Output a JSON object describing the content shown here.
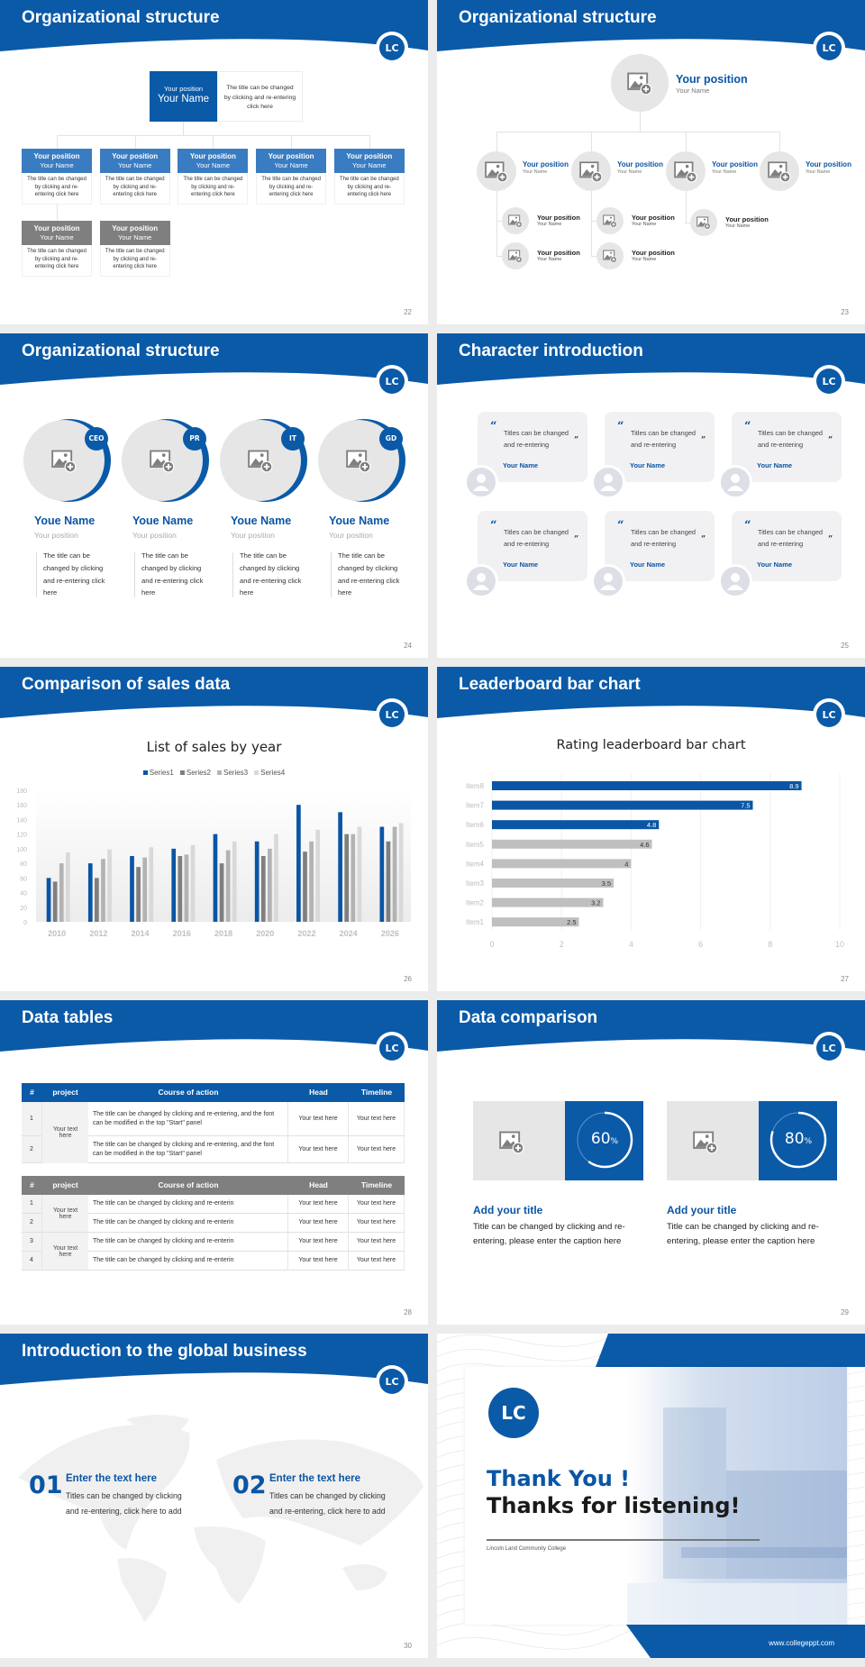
{
  "page": {
    "background": "#ececec"
  },
  "colors": {
    "brand_blue": "#0a5aa8",
    "mid_blue": "#3a7cc1",
    "gray_box": "#7f7f7f",
    "light_gray": "#e6e6e6"
  },
  "logo": {
    "text": "LC"
  },
  "slides": [
    {
      "number": "22",
      "title": "Organizational structure",
      "top": {
        "position": "Your position",
        "name": "Your Name",
        "description": "The title can be changed by clicking and re-entering click here"
      },
      "members": [
        {
          "position": "Your position",
          "name": "Your Name",
          "description": "The title can be changed by clicking and re-entering click here",
          "tone": "blue"
        },
        {
          "position": "Your position",
          "name": "Your Name",
          "description": "The title can be changed by clicking and re-entering click here",
          "tone": "blue"
        },
        {
          "position": "Your position",
          "name": "Your Name",
          "description": "The title can be changed by clicking and re-entering click here",
          "tone": "blue"
        },
        {
          "position": "Your position",
          "name": "Your Name",
          "description": "The title can be changed by clicking and re-entering click here",
          "tone": "blue"
        },
        {
          "position": "Your position",
          "name": "Your Name",
          "description": "The title can be changed by clicking and re-entering click here",
          "tone": "blue"
        },
        {
          "position": "Your position",
          "name": "Your Name",
          "description": "The title can be changed by clicking and re-entering click here",
          "tone": "gray"
        },
        {
          "position": "Your position",
          "name": "Your Name",
          "description": "The title can be changed by clicking and re-entering click here",
          "tone": "gray"
        }
      ]
    },
    {
      "number": "23",
      "title": "Organizational structure",
      "top": {
        "position": "Your position",
        "name": "Your Name"
      },
      "level2": [
        {
          "position": "Your position",
          "name": "Your Name"
        },
        {
          "position": "Your position",
          "name": "Your Name"
        },
        {
          "position": "Your position",
          "name": "Your Name"
        },
        {
          "position": "Your position",
          "name": "Your Name"
        }
      ],
      "level3": [
        {
          "position": "Your position",
          "name": "Your Name"
        },
        {
          "position": "Your position",
          "name": "Your Name"
        },
        {
          "position": "Your position",
          "name": "Your Name"
        },
        {
          "position": "Your position",
          "name": "Your Name"
        },
        {
          "position": "Your position",
          "name": "Your Name"
        }
      ]
    },
    {
      "number": "24",
      "title": "Organizational structure",
      "members": [
        {
          "badge": "CEO",
          "name": "Youe Name",
          "position": "Your position",
          "description": "The title can be changed by clicking and re-entering click here"
        },
        {
          "badge": "PR",
          "name": "Youe Name",
          "position": "Your position",
          "description": "The title can be changed by clicking and re-entering click here"
        },
        {
          "badge": "IT",
          "name": "Youe Name",
          "position": "Your position",
          "description": "The title can be changed by clicking and re-entering click here"
        },
        {
          "badge": "GD",
          "name": "Youe Name",
          "position": "Your position",
          "description": "The title can be changed by clicking and re-entering click here"
        }
      ]
    },
    {
      "number": "25",
      "title": "Character introduction",
      "cards": [
        {
          "quote": "Titles can be changed and re-entering",
          "name": "Your Name"
        },
        {
          "quote": "Titles can be changed and re-entering",
          "name": "Your Name"
        },
        {
          "quote": "Titles can be changed and re-entering",
          "name": "Your Name"
        },
        {
          "quote": "Titles can be changed and re-entering",
          "name": "Your Name"
        },
        {
          "quote": "Titles can be changed and re-entering",
          "name": "Your Name"
        },
        {
          "quote": "Titles can be changed and re-entering",
          "name": "Your Name"
        }
      ]
    },
    {
      "number": "26",
      "title": "Comparison of sales data"
    },
    {
      "number": "27",
      "title": "Leaderboard bar chart"
    },
    {
      "number": "28",
      "title": "Data tables",
      "table1": {
        "headers": [
          "#",
          "project",
          "Course of action",
          "Head",
          "Timeline"
        ],
        "project": "Your text here",
        "rows": [
          {
            "num": "1",
            "action": "The title can be changed by clicking and re-entering, and the font can be modified in the top \"Start\" panel",
            "head": "Your text here",
            "timeline": "Your text here"
          },
          {
            "num": "2",
            "action": "The title can be changed by clicking and re-entering, and the font can be modified in the top \"Start\" panel",
            "head": "Your text here",
            "timeline": "Your text here"
          }
        ]
      },
      "table2": {
        "headers": [
          "#",
          "project",
          "Course of action",
          "Head",
          "Timeline"
        ],
        "projects": [
          "Your text here",
          "Your text here"
        ],
        "rows": [
          {
            "num": "1",
            "action": "The title can be changed by clicking and re-enterin",
            "head": "Your text here",
            "timeline": "Your text here"
          },
          {
            "num": "2",
            "action": "The title can be changed by clicking and re-enterin",
            "head": "Your text here",
            "timeline": "Your text here"
          },
          {
            "num": "3",
            "action": "The title can be changed by clicking and re-enterin",
            "head": "Your text here",
            "timeline": "Your text here"
          },
          {
            "num": "4",
            "action": "The title can be changed by clicking and re-enterin",
            "head": "Your text here",
            "timeline": "Your text here"
          }
        ]
      }
    },
    {
      "number": "29",
      "title": "Data comparison",
      "items": [
        {
          "percent": 60,
          "value": "60",
          "unit": "%",
          "title": "Add your title",
          "text": "Title can be changed by clicking and re-entering, please enter the caption here"
        },
        {
          "percent": 80,
          "value": "80",
          "unit": "%",
          "title": "Add your title",
          "text": "Title can be changed by clicking and re-entering, please enter the caption here"
        }
      ]
    },
    {
      "number": "30",
      "title": "Introduction to the global business",
      "items": [
        {
          "num": "01",
          "heading": "Enter the text here",
          "text": "Titles can be changed by clicking and re-entering, click here to add"
        },
        {
          "num": "02",
          "heading": "Enter the text here",
          "text": "Titles can be changed by clicking and re-entering, click here to add"
        }
      ]
    },
    {
      "number": "",
      "title": "",
      "thank_you": "Thank You !",
      "thanks_listening": "Thanks for listening!",
      "college": "Lincoln Land Community College",
      "website": "www.collegeppt.com"
    }
  ],
  "chart_data": [
    {
      "type": "bar",
      "title": "List of sales by year",
      "categories": [
        "2010",
        "2012",
        "2014",
        "2016",
        "2018",
        "2020",
        "2022",
        "2024",
        "2026"
      ],
      "series": [
        {
          "name": "Series1",
          "color": "#0a55a5",
          "values": [
            60,
            80,
            90,
            100,
            120,
            110,
            160,
            150,
            130
          ]
        },
        {
          "name": "Series2",
          "color": "#7f7f7f",
          "values": [
            55,
            60,
            75,
            90,
            80,
            90,
            96,
            120,
            110
          ]
        },
        {
          "name": "Series3",
          "color": "#b3b3b3",
          "values": [
            80,
            86,
            88,
            92,
            98,
            100,
            110,
            120,
            130
          ]
        },
        {
          "name": "Series4",
          "color": "#d9d9d9",
          "values": [
            95,
            99,
            102,
            105,
            110,
            120,
            126,
            130,
            135
          ]
        }
      ],
      "yticks": [
        "0",
        "20",
        "40",
        "60",
        "80",
        "100",
        "120",
        "140",
        "160",
        "180"
      ],
      "ylim": [
        0,
        180
      ],
      "legend": "top",
      "grid": false
    },
    {
      "type": "bar",
      "orientation": "horizontal",
      "title": "Rating leaderboard bar chart",
      "categories": [
        "Item8",
        "Item7",
        "Item6",
        "Item5",
        "Item4",
        "Item3",
        "Item2",
        "Item1"
      ],
      "values": [
        8.9,
        7.5,
        4.8,
        4.6,
        4,
        3.5,
        3.2,
        2.5
      ],
      "labels": [
        "8.9",
        "7.5",
        "4.8",
        "4.6",
        "4",
        "3.5",
        "3.2",
        "2.5"
      ],
      "highlight": [
        "#0a55a5",
        "#0a55a5",
        "#0a55a5",
        "#bfbfbf",
        "#bfbfbf",
        "#bfbfbf",
        "#bfbfbf",
        "#bfbfbf"
      ],
      "xticks": [
        "0",
        "2",
        "4",
        "6",
        "8",
        "10"
      ],
      "xlim": [
        0,
        10
      ],
      "grid": true
    }
  ]
}
